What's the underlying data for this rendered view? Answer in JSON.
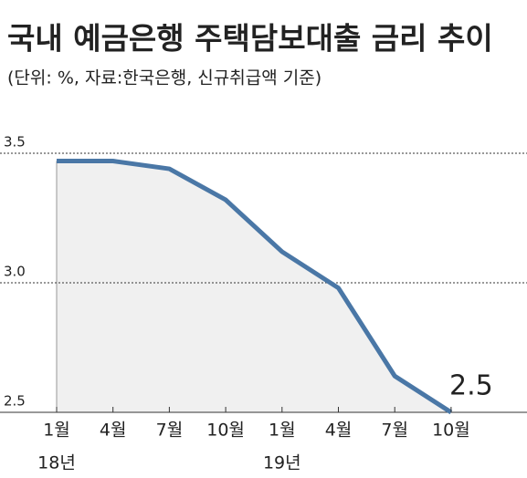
{
  "chart_data": {
    "type": "area-line",
    "title": "국내 예금은행 주택담보대출 금리 추이",
    "subtitle": "(단위: %, 자료:한국은행, 신규취급액 기준)",
    "categories": [
      "1월",
      "4월",
      "7월",
      "10월",
      "1월",
      "4월",
      "7월",
      "10월"
    ],
    "group_labels": [
      "18년",
      null,
      null,
      null,
      "19년",
      null,
      null,
      null
    ],
    "values": [
      3.47,
      3.47,
      3.44,
      3.32,
      3.12,
      2.98,
      2.64,
      2.5
    ],
    "value_labels": [
      null,
      null,
      null,
      null,
      null,
      null,
      null,
      "2.5"
    ],
    "color": "#4a77a6",
    "fill": "#f0f0f0",
    "ylim": [
      2.5,
      3.5
    ],
    "yticks": [
      2.5,
      {
        "value": 3,
        "label": "3.0"
      },
      3.5
    ],
    "grid": true
  }
}
